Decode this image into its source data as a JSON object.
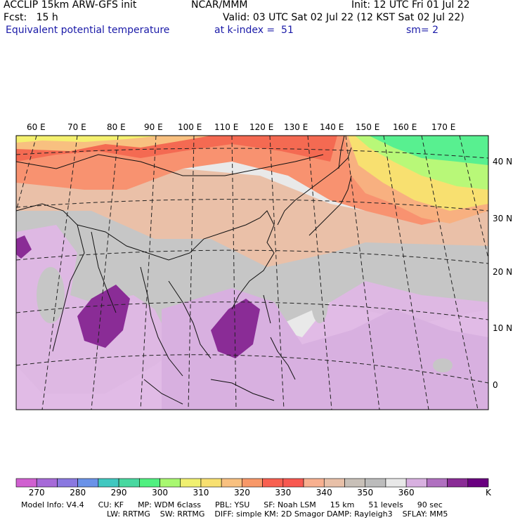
{
  "header": {
    "model": "ACCLIP 15km ARW-GFS init",
    "center": "NCAR/MMM",
    "init": "Init: 12 UTC Fri 01 Jul 22",
    "fcst": "Fcst:   15 h",
    "valid": "Valid: 03 UTC Sat 02 Jul 22 (12 KST Sat 02 Jul 22)",
    "field": "Equivalent potential temperature",
    "level": "at k-index =  51",
    "smooth": "sm= 2"
  },
  "map": {
    "lon_labels": [
      "60 E",
      "70 E",
      "80 E",
      "90 E",
      "100 E",
      "110 E",
      "120 E",
      "130 E",
      "140 E",
      "150 E",
      "160 E",
      "170 E"
    ],
    "lat_labels": [
      "40 N",
      "30 N",
      "20 N",
      "10 N",
      "0"
    ]
  },
  "colorbar": {
    "colors": [
      "#d060d0",
      "#a66ad8",
      "#8a78e0",
      "#6a92e8",
      "#40c8c0",
      "#48d8a0",
      "#50f080",
      "#a8f870",
      "#f0f070",
      "#f8e070",
      "#f8c080",
      "#f89868",
      "#f86050",
      "#f85850",
      "#f8b090",
      "#e8c0a8",
      "#c8c0b8",
      "#bcbcbc",
      "#e8e8e8",
      "#d8b0e0",
      "#b070c0",
      "#8a2c96",
      "#6a0080"
    ],
    "ticks": [
      "270",
      "280",
      "290",
      "300",
      "310",
      "320",
      "330",
      "340",
      "350",
      "360"
    ],
    "unit": "K"
  },
  "footer": {
    "line1": [
      {
        "key": "model_info",
        "text": "Model Info: V4.4"
      },
      {
        "key": "cu",
        "text": "CU: KF"
      },
      {
        "key": "mp",
        "text": "MP: WDM 6class"
      },
      {
        "key": "pbl",
        "text": "PBL: YSU"
      },
      {
        "key": "sf",
        "text": "SF: Noah LSM"
      },
      {
        "key": "res",
        "text": "15 km"
      },
      {
        "key": "levels",
        "text": "51 levels"
      },
      {
        "key": "dt",
        "text": "90 sec"
      }
    ],
    "line2": [
      {
        "key": "lw",
        "text": "LW: RRTMG"
      },
      {
        "key": "sw",
        "text": "SW: RRTMG"
      },
      {
        "key": "diff",
        "text": "DIFF: simple KM: 2D Smagor DAMP: Rayleigh3"
      },
      {
        "key": "sflay",
        "text": "SFLAY: MM5"
      }
    ]
  }
}
